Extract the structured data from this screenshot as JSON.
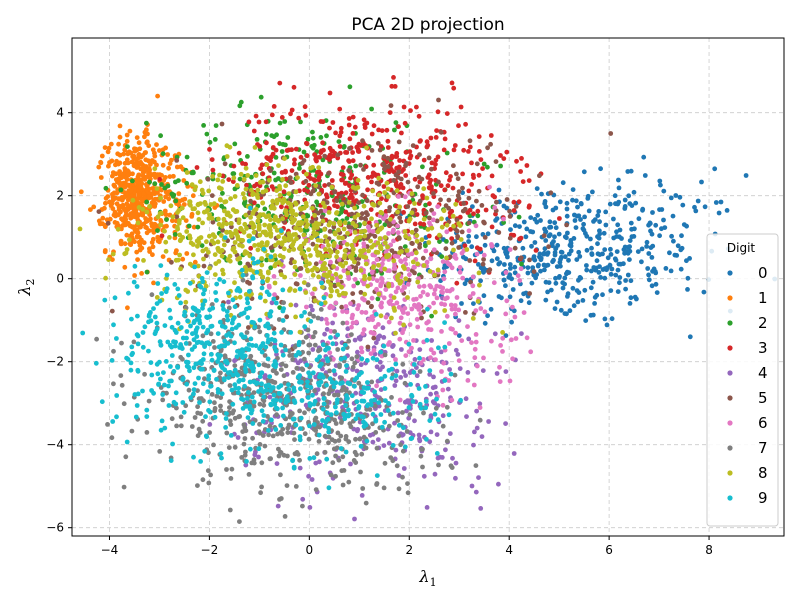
{
  "chart_data": {
    "type": "scatter",
    "title": "PCA 2D projection",
    "xlabel": {
      "symbol": "λ",
      "sub": "1"
    },
    "ylabel": {
      "symbol": "λ",
      "sub": "2"
    },
    "xlim": [
      -4.75,
      9.5
    ],
    "ylim": [
      -6.2,
      5.8
    ],
    "xticks": [
      -4,
      -2,
      0,
      2,
      4,
      6,
      8
    ],
    "yticks": [
      -6,
      -4,
      -2,
      0,
      2,
      4
    ],
    "grid": true,
    "legend": {
      "title": "Digit",
      "placement": "right"
    },
    "series": [
      {
        "name": "0",
        "color": "#1f77b4",
        "clusters": [
          {
            "cx": 4.8,
            "cy": 0.6,
            "sx": 1.15,
            "sy": 0.85,
            "n": 380
          },
          {
            "cx": 6.8,
            "cy": 0.9,
            "sx": 0.9,
            "sy": 0.8,
            "n": 110
          }
        ]
      },
      {
        "name": "1",
        "color": "#ff7f0e",
        "clusters": [
          {
            "cx": -3.5,
            "cy": 2.0,
            "sx": 0.28,
            "sy": 0.7,
            "n": 420
          },
          {
            "cx": -3.0,
            "cy": 1.9,
            "sx": 0.5,
            "sy": 0.8,
            "n": 140
          }
        ]
      },
      {
        "name": "2",
        "color": "#2ca02c",
        "clusters": [
          {
            "cx": -0.6,
            "cy": 2.3,
            "sx": 1.3,
            "sy": 0.9,
            "n": 240
          },
          {
            "cx": 1.5,
            "cy": 1.5,
            "sx": 1.2,
            "sy": 0.9,
            "n": 90
          }
        ]
      },
      {
        "name": "3",
        "color": "#d62728",
        "clusters": [
          {
            "cx": 0.9,
            "cy": 2.6,
            "sx": 1.3,
            "sy": 0.85,
            "n": 380
          },
          {
            "cx": 2.8,
            "cy": 2.0,
            "sx": 1.0,
            "sy": 0.9,
            "n": 90
          }
        ]
      },
      {
        "name": "4",
        "color": "#9467bd",
        "clusters": [
          {
            "cx": 0.8,
            "cy": -2.6,
            "sx": 1.2,
            "sy": 1.1,
            "n": 280
          },
          {
            "cx": 2.4,
            "cy": -3.2,
            "sx": 0.9,
            "sy": 0.9,
            "n": 90
          }
        ]
      },
      {
        "name": "5",
        "color": "#8c564b",
        "clusters": [
          {
            "cx": 0.6,
            "cy": 1.1,
            "sx": 1.5,
            "sy": 1.1,
            "n": 300
          },
          {
            "cx": 2.6,
            "cy": 1.4,
            "sx": 1.0,
            "sy": 0.9,
            "n": 80
          }
        ]
      },
      {
        "name": "6",
        "color": "#e377c2",
        "clusters": [
          {
            "cx": 1.6,
            "cy": -0.2,
            "sx": 1.1,
            "sy": 0.85,
            "n": 320
          },
          {
            "cx": 3.0,
            "cy": -1.4,
            "sx": 0.9,
            "sy": 0.9,
            "n": 70
          }
        ]
      },
      {
        "name": "7",
        "color": "#7f7f7f",
        "clusters": [
          {
            "cx": -1.0,
            "cy": -2.7,
            "sx": 1.1,
            "sy": 1.0,
            "n": 420
          },
          {
            "cx": 0.8,
            "cy": -3.6,
            "sx": 1.0,
            "sy": 0.8,
            "n": 160
          }
        ]
      },
      {
        "name": "8",
        "color": "#bcbd22",
        "clusters": [
          {
            "cx": -0.9,
            "cy": 1.0,
            "sx": 1.2,
            "sy": 0.8,
            "n": 540
          },
          {
            "cx": 1.3,
            "cy": 0.7,
            "sx": 1.1,
            "sy": 0.8,
            "n": 160
          }
        ]
      },
      {
        "name": "9",
        "color": "#17becf",
        "clusters": [
          {
            "cx": -1.9,
            "cy": -1.6,
            "sx": 1.0,
            "sy": 1.0,
            "n": 420
          },
          {
            "cx": 0.5,
            "cy": -2.8,
            "sx": 1.1,
            "sy": 0.8,
            "n": 260
          }
        ]
      }
    ]
  }
}
